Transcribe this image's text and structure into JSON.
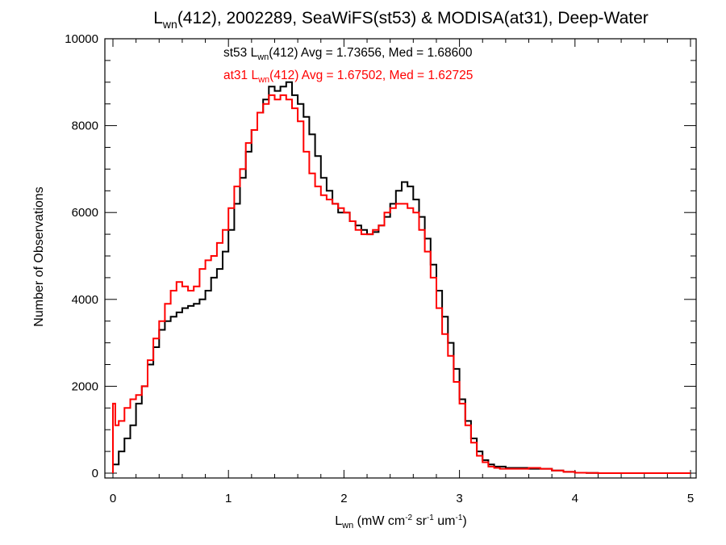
{
  "chart_data": {
    "type": "line",
    "title": {
      "pre": "L",
      "sub": "wn",
      "post": "(412), 2002289, SeaWiFS(st53) & MODISA(at31), Deep-Water"
    },
    "xlabel": {
      "pre": "L",
      "sub": "wn",
      "p1": " (mW cm",
      "sup1": "-2",
      "p2": " sr",
      "sup2": "-1",
      "p3": " um",
      "sup3": "-1",
      "p4": ")"
    },
    "ylabel": "Number of Observations",
    "xlim": [
      0,
      5
    ],
    "ylim": [
      0,
      10000
    ],
    "x_ticks": [
      "0",
      "1",
      "2",
      "3",
      "4",
      "5"
    ],
    "y_ticks": [
      "0",
      "2000",
      "4000",
      "6000",
      "8000",
      "10000"
    ],
    "grid": false,
    "step": true,
    "annotations": [
      {
        "pre": "st53 L",
        "sub": "wn",
        "post": "(412) Avg = 1.73656, Med = 1.68600",
        "color": "#000000"
      },
      {
        "pre": "at31 L",
        "sub": "wn",
        "post": "(412) Avg = 1.67502, Med = 1.62725",
        "color": "#ff0000"
      }
    ],
    "series": [
      {
        "color": "#000000",
        "x": [
          0,
          0.05,
          0.1,
          0.15,
          0.2,
          0.25,
          0.3,
          0.35,
          0.4,
          0.45,
          0.5,
          0.55,
          0.6,
          0.65,
          0.7,
          0.75,
          0.8,
          0.85,
          0.9,
          0.95,
          1.0,
          1.05,
          1.1,
          1.15,
          1.2,
          1.25,
          1.3,
          1.35,
          1.4,
          1.45,
          1.5,
          1.55,
          1.6,
          1.65,
          1.7,
          1.75,
          1.8,
          1.85,
          1.9,
          1.95,
          2.0,
          2.05,
          2.1,
          2.15,
          2.2,
          2.25,
          2.3,
          2.35,
          2.4,
          2.45,
          2.5,
          2.55,
          2.6,
          2.65,
          2.7,
          2.75,
          2.8,
          2.85,
          2.9,
          2.95,
          3.0,
          3.05,
          3.1,
          3.15,
          3.2,
          3.25,
          3.3,
          3.35,
          3.4,
          3.5,
          3.6,
          3.7,
          3.8,
          3.9,
          4.0,
          4.1,
          4.2,
          4.4,
          4.6,
          5.0
        ],
        "values": [
          200,
          500,
          800,
          1100,
          1600,
          2000,
          2500,
          2900,
          3300,
          3500,
          3600,
          3700,
          3800,
          3850,
          3900,
          4000,
          4200,
          4500,
          4700,
          5100,
          5600,
          6200,
          6800,
          7400,
          7900,
          8300,
          8600,
          8900,
          8800,
          8900,
          9000,
          8700,
          8500,
          8200,
          7800,
          7300,
          6800,
          6500,
          6200,
          6000,
          6000,
          5800,
          5700,
          5600,
          5500,
          5550,
          5700,
          5900,
          6200,
          6500,
          6700,
          6600,
          6300,
          5900,
          5400,
          4800,
          4200,
          3600,
          3000,
          2400,
          1700,
          1200,
          800,
          500,
          300,
          200,
          150,
          150,
          120,
          120,
          100,
          100,
          60,
          30,
          10,
          5,
          0,
          0,
          0,
          0
        ]
      },
      {
        "color": "#ff0000",
        "x": [
          0,
          0.02,
          0.05,
          0.1,
          0.15,
          0.2,
          0.25,
          0.3,
          0.35,
          0.4,
          0.45,
          0.5,
          0.55,
          0.6,
          0.65,
          0.7,
          0.75,
          0.8,
          0.85,
          0.9,
          0.95,
          1.0,
          1.05,
          1.1,
          1.15,
          1.2,
          1.25,
          1.3,
          1.35,
          1.4,
          1.45,
          1.5,
          1.55,
          1.6,
          1.65,
          1.7,
          1.75,
          1.8,
          1.85,
          1.9,
          1.95,
          2.0,
          2.05,
          2.1,
          2.15,
          2.2,
          2.25,
          2.3,
          2.35,
          2.4,
          2.45,
          2.5,
          2.55,
          2.6,
          2.65,
          2.7,
          2.75,
          2.8,
          2.85,
          2.9,
          2.95,
          3.0,
          3.05,
          3.1,
          3.15,
          3.2,
          3.25,
          3.3,
          3.35,
          3.4,
          3.5,
          3.6,
          3.7,
          3.8,
          3.9,
          4.0,
          4.1,
          4.2,
          4.4,
          4.6,
          5.0
        ],
        "values": [
          1600,
          1100,
          1200,
          1500,
          1700,
          1800,
          2000,
          2600,
          3100,
          3500,
          3900,
          4200,
          4400,
          4300,
          4200,
          4300,
          4700,
          4900,
          5000,
          5300,
          5600,
          6100,
          6600,
          7000,
          7600,
          7900,
          8300,
          8500,
          8700,
          8600,
          8700,
          8600,
          8400,
          8100,
          7400,
          6900,
          6600,
          6400,
          6300,
          6200,
          6100,
          6000,
          5800,
          5600,
          5500,
          5500,
          5600,
          5700,
          6000,
          6100,
          6200,
          6200,
          6100,
          6000,
          5600,
          5100,
          4500,
          3800,
          3200,
          2700,
          2100,
          1600,
          1100,
          700,
          400,
          250,
          150,
          120,
          100,
          100,
          100,
          120,
          100,
          60,
          30,
          10,
          5,
          0,
          0,
          0,
          0
        ]
      }
    ]
  }
}
